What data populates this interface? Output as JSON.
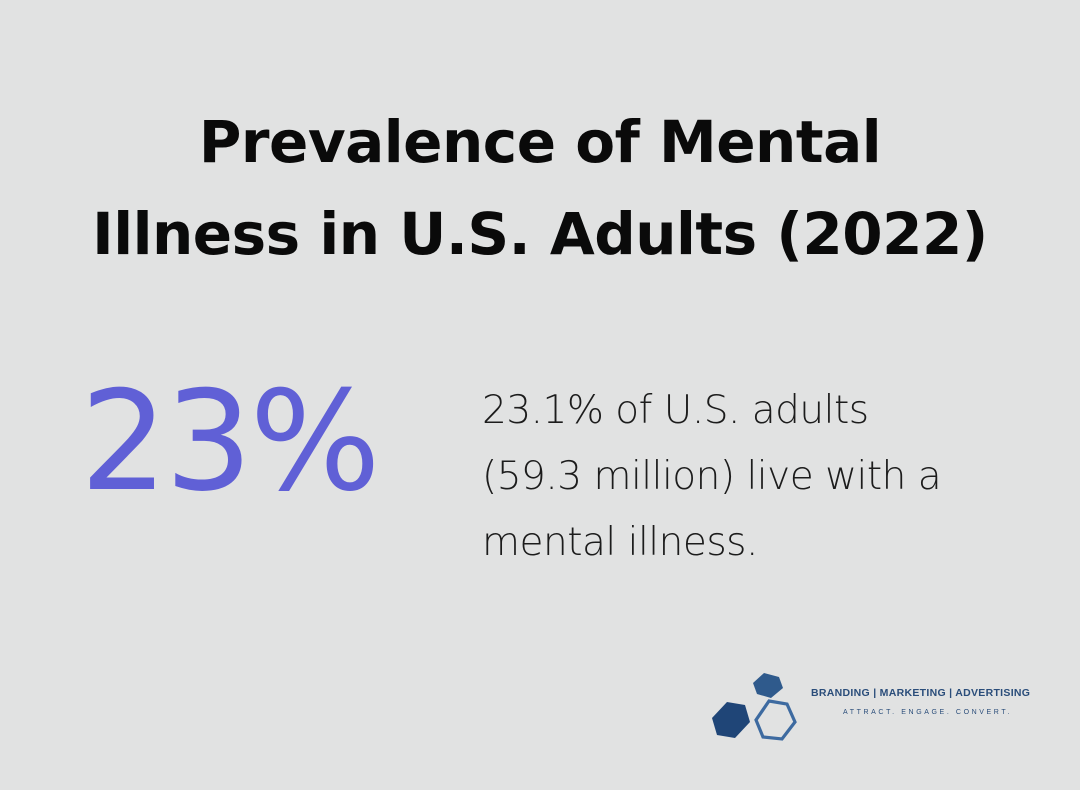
{
  "title": {
    "line1": "Prevalence of Mental",
    "line2": "Illness in U.S. Adults (2022)"
  },
  "stat": {
    "value": "23%",
    "description_lines": [
      "23.1% of U.S. adults",
      "(59.3 million) live with a",
      "mental illness."
    ]
  },
  "logo": {
    "icon": "hexagon-cluster-icon",
    "tagline": "BRANDING | MARKETING | ADVERTISING",
    "subtagline": "ATTRACT. ENGAGE. CONVERT.",
    "colors": {
      "dark": "#1f4577",
      "mid": "#2f5a8c",
      "light": "#3d6aa0"
    }
  },
  "colors": {
    "background": "#e1e2e2",
    "accent": "#6060d6",
    "text": "#0a0a0a"
  }
}
